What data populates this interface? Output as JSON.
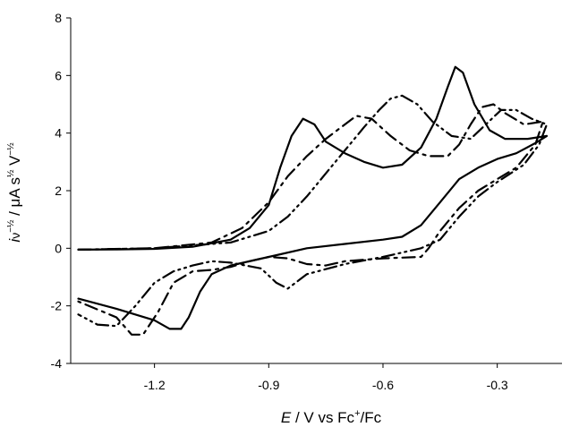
{
  "chart_data": {
    "type": "line",
    "title": "",
    "xlabel": {
      "italic": "E",
      "rest": " / V vs Fc",
      "sup": "+",
      "tail": "/Fc"
    },
    "ylabel": {
      "i": "i",
      "nu": "ν",
      "nu_exp": "−½",
      "sep": " / ",
      "mu": "μ",
      "unit": "A s",
      "s_exp": "½",
      "V": " V",
      "V_exp": "−½"
    },
    "xlim": [
      -1.42,
      -0.13
    ],
    "ylim": [
      -4,
      8
    ],
    "xticks": [
      "-1.2",
      "-0.9",
      "-0.6",
      "-0.3"
    ],
    "xtick_values": [
      -1.2,
      -0.9,
      -0.6,
      -0.3
    ],
    "yticks": [
      "-4",
      "-2",
      "0",
      "2",
      "4",
      "6",
      "8"
    ],
    "ytick_values": [
      -4,
      -2,
      0,
      2,
      4,
      6,
      8
    ],
    "grid": false,
    "legend": "none",
    "series": [
      {
        "style": "solid",
        "points": [
          [
            -1.4,
            -0.05
          ],
          [
            -1.3,
            -0.04
          ],
          [
            -1.2,
            -0.02
          ],
          [
            -1.1,
            0.05
          ],
          [
            -1.0,
            0.3
          ],
          [
            -0.95,
            0.7
          ],
          [
            -0.9,
            1.5
          ],
          [
            -0.87,
            2.8
          ],
          [
            -0.84,
            3.9
          ],
          [
            -0.81,
            4.5
          ],
          [
            -0.78,
            4.3
          ],
          [
            -0.75,
            3.7
          ],
          [
            -0.7,
            3.3
          ],
          [
            -0.65,
            3.0
          ],
          [
            -0.6,
            2.8
          ],
          [
            -0.55,
            2.9
          ],
          [
            -0.5,
            3.5
          ],
          [
            -0.46,
            4.5
          ],
          [
            -0.43,
            5.6
          ],
          [
            -0.41,
            6.3
          ],
          [
            -0.39,
            6.1
          ],
          [
            -0.36,
            5.0
          ],
          [
            -0.32,
            4.1
          ],
          [
            -0.28,
            3.8
          ],
          [
            -0.22,
            3.8
          ],
          [
            -0.17,
            3.9
          ],
          [
            -0.2,
            3.65
          ],
          [
            -0.25,
            3.3
          ],
          [
            -0.3,
            3.1
          ],
          [
            -0.35,
            2.8
          ],
          [
            -0.4,
            2.4
          ],
          [
            -0.45,
            1.6
          ],
          [
            -0.5,
            0.8
          ],
          [
            -0.55,
            0.4
          ],
          [
            -0.6,
            0.3
          ],
          [
            -0.7,
            0.15
          ],
          [
            -0.8,
            0.0
          ],
          [
            -0.9,
            -0.3
          ],
          [
            -1.0,
            -0.6
          ],
          [
            -1.05,
            -0.9
          ],
          [
            -1.08,
            -1.5
          ],
          [
            -1.11,
            -2.4
          ],
          [
            -1.13,
            -2.8
          ],
          [
            -1.16,
            -2.8
          ],
          [
            -1.2,
            -2.5
          ],
          [
            -1.3,
            -2.1
          ],
          [
            -1.4,
            -1.75
          ]
        ]
      },
      {
        "style": "dash-dot",
        "points": [
          [
            -1.4,
            -0.05
          ],
          [
            -1.2,
            0.0
          ],
          [
            -1.05,
            0.2
          ],
          [
            -0.97,
            0.7
          ],
          [
            -0.9,
            1.6
          ],
          [
            -0.85,
            2.5
          ],
          [
            -0.8,
            3.2
          ],
          [
            -0.75,
            3.8
          ],
          [
            -0.7,
            4.3
          ],
          [
            -0.67,
            4.6
          ],
          [
            -0.63,
            4.5
          ],
          [
            -0.58,
            3.9
          ],
          [
            -0.53,
            3.4
          ],
          [
            -0.48,
            3.2
          ],
          [
            -0.43,
            3.2
          ],
          [
            -0.4,
            3.6
          ],
          [
            -0.37,
            4.3
          ],
          [
            -0.34,
            4.9
          ],
          [
            -0.31,
            5.0
          ],
          [
            -0.28,
            4.7
          ],
          [
            -0.23,
            4.3
          ],
          [
            -0.18,
            4.4
          ],
          [
            -0.2,
            3.6
          ],
          [
            -0.25,
            2.8
          ],
          [
            -0.3,
            2.4
          ],
          [
            -0.35,
            2.0
          ],
          [
            -0.4,
            1.4
          ],
          [
            -0.45,
            0.6
          ],
          [
            -0.48,
            0.0
          ],
          [
            -0.5,
            -0.3
          ],
          [
            -0.6,
            -0.35
          ],
          [
            -0.7,
            -0.45
          ],
          [
            -0.75,
            -0.6
          ],
          [
            -0.8,
            -0.55
          ],
          [
            -0.85,
            -0.35
          ],
          [
            -0.9,
            -0.3
          ],
          [
            -0.95,
            -0.45
          ],
          [
            -1.0,
            -0.65
          ],
          [
            -1.05,
            -0.75
          ],
          [
            -1.1,
            -0.8
          ],
          [
            -1.15,
            -1.2
          ],
          [
            -1.19,
            -2.2
          ],
          [
            -1.23,
            -3.0
          ],
          [
            -1.26,
            -3.0
          ],
          [
            -1.3,
            -2.4
          ],
          [
            -1.4,
            -1.85
          ]
        ]
      },
      {
        "style": "dash-dot-dot",
        "points": [
          [
            -1.4,
            -0.05
          ],
          [
            -1.2,
            0.0
          ],
          [
            -1.0,
            0.2
          ],
          [
            -0.9,
            0.6
          ],
          [
            -0.85,
            1.1
          ],
          [
            -0.8,
            1.8
          ],
          [
            -0.75,
            2.6
          ],
          [
            -0.7,
            3.4
          ],
          [
            -0.65,
            4.2
          ],
          [
            -0.61,
            4.8
          ],
          [
            -0.58,
            5.2
          ],
          [
            -0.55,
            5.3
          ],
          [
            -0.51,
            5.0
          ],
          [
            -0.47,
            4.4
          ],
          [
            -0.42,
            3.9
          ],
          [
            -0.37,
            3.8
          ],
          [
            -0.33,
            4.3
          ],
          [
            -0.29,
            4.8
          ],
          [
            -0.25,
            4.8
          ],
          [
            -0.21,
            4.5
          ],
          [
            -0.17,
            4.3
          ],
          [
            -0.19,
            3.6
          ],
          [
            -0.23,
            2.9
          ],
          [
            -0.3,
            2.3
          ],
          [
            -0.35,
            1.8
          ],
          [
            -0.4,
            1.1
          ],
          [
            -0.45,
            0.3
          ],
          [
            -0.5,
            0.0
          ],
          [
            -0.6,
            -0.3
          ],
          [
            -0.7,
            -0.55
          ],
          [
            -0.8,
            -0.9
          ],
          [
            -0.85,
            -1.4
          ],
          [
            -0.88,
            -1.2
          ],
          [
            -0.92,
            -0.7
          ],
          [
            -1.0,
            -0.5
          ],
          [
            -1.05,
            -0.45
          ],
          [
            -1.1,
            -0.6
          ],
          [
            -1.15,
            -0.8
          ],
          [
            -1.2,
            -1.2
          ],
          [
            -1.25,
            -2.0
          ],
          [
            -1.3,
            -2.7
          ],
          [
            -1.35,
            -2.65
          ],
          [
            -1.4,
            -2.3
          ]
        ]
      }
    ]
  }
}
